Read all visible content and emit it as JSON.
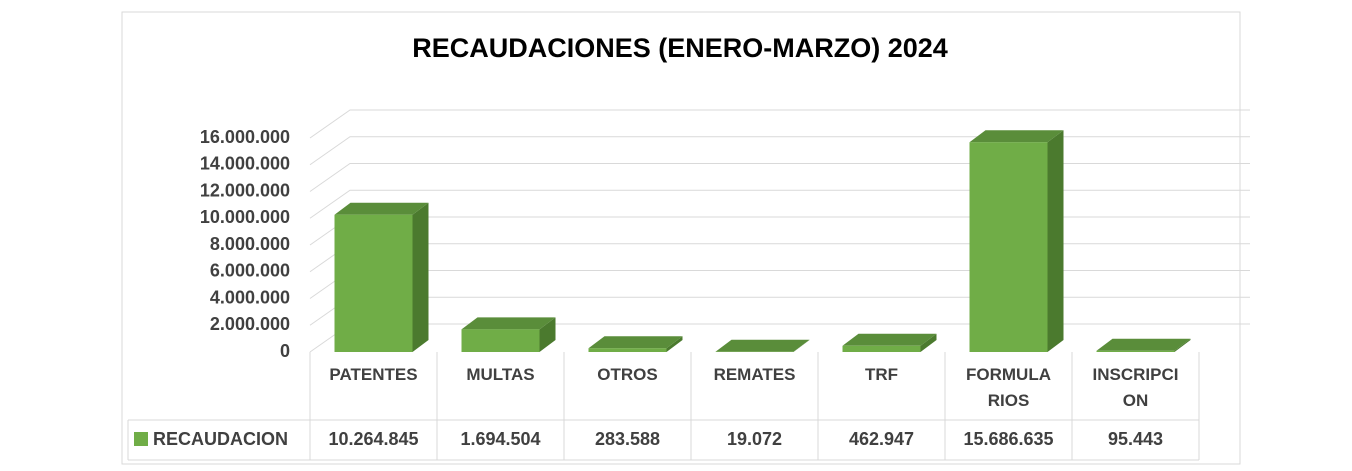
{
  "chart_data": {
    "type": "bar3d",
    "title": "RECAUDACIONES (ENERO-MARZO) 2024",
    "categories": [
      "PATENTES",
      "MULTAS",
      "OTROS",
      "REMATES",
      "TRF",
      "FORMULARIOS",
      "INSCRIPCION"
    ],
    "series": [
      {
        "name": "RECAUDACION",
        "color": "#70ad47",
        "values": [
          10264845,
          1694504,
          283588,
          19072,
          462947,
          15686635,
          95443
        ],
        "value_labels": [
          "10.264.845",
          "1.694.504",
          "283.588",
          "19.072",
          "462.947",
          "15.686.635",
          "95.443"
        ]
      }
    ],
    "ylim": [
      0,
      16000000
    ],
    "yticks": [
      0,
      {
        "value": 2000000,
        "label": "2.000.000"
      },
      {
        "value": 4000000,
        "label": "4.000.000"
      },
      {
        "value": 6000000,
        "label": "6.000.000"
      },
      {
        "value": 8000000,
        "label": "8.000.000"
      },
      {
        "value": 10000000,
        "label": "10.000.000"
      },
      {
        "value": 12000000,
        "label": "12.000.000"
      },
      {
        "value": 14000000,
        "label": "14.000.000"
      },
      {
        "value": 16000000,
        "label": "16.000.000"
      }
    ],
    "grid": true
  }
}
